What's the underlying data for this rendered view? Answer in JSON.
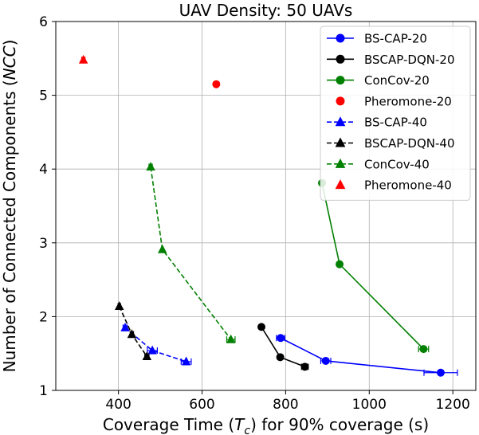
{
  "chart_data": {
    "type": "scatter",
    "title": "UAV Density: 50 UAVs",
    "xlabel": {
      "prefix": "Coverage Time (",
      "symbol": "T",
      "subscript": "c",
      "suffix": ") for 90% coverage (s)"
    },
    "ylabel": {
      "prefix": "Number of Connected Components (",
      "symbol": "NCC",
      "suffix": ")"
    },
    "xlim": [
      250,
      1255
    ],
    "ylim": [
      1,
      6
    ],
    "xticks": [
      400,
      600,
      800,
      1000,
      1200
    ],
    "yticks": [
      1,
      2,
      3,
      4,
      5,
      6
    ],
    "grid": true,
    "legend_position": "top-right",
    "series": [
      {
        "name": "BS-CAP-20",
        "color": "#0000ff",
        "marker": "circle",
        "dash": "solid",
        "x": [
          788,
          896,
          1171
        ],
        "y": [
          1.71,
          1.4,
          1.24
        ],
        "xerr": [
          10,
          12,
          40
        ]
      },
      {
        "name": "BSCAP-DQN-20",
        "color": "#000000",
        "marker": "circle",
        "dash": "solid",
        "x": [
          742,
          787,
          846
        ],
        "y": [
          1.86,
          1.45,
          1.32
        ],
        "xerr": [
          0,
          0,
          8
        ]
      },
      {
        "name": "ConCov-20",
        "color": "#008000",
        "marker": "circle",
        "dash": "solid",
        "x": [
          887,
          929,
          1130
        ],
        "y": [
          3.81,
          2.71,
          1.56
        ],
        "xerr": [
          0,
          0,
          12
        ]
      },
      {
        "name": "Pheromone-20",
        "color": "#ff0000",
        "marker": "circle",
        "dash": "none",
        "x": [
          634
        ],
        "y": [
          5.15
        ],
        "xerr": [
          0
        ]
      },
      {
        "name": "BS-CAP-40",
        "color": "#0000ff",
        "marker": "triangle",
        "dash": "dashed",
        "x": [
          416,
          481,
          562
        ],
        "y": [
          1.85,
          1.54,
          1.39
        ],
        "xerr": [
          5,
          12,
          12
        ]
      },
      {
        "name": "BSCAP-DQN-40",
        "color": "#000000",
        "marker": "triangle",
        "dash": "dashed",
        "x": [
          402,
          432,
          468
        ],
        "y": [
          2.14,
          1.76,
          1.46
        ],
        "xerr": [
          3,
          4,
          5
        ]
      },
      {
        "name": "ConCov-40",
        "color": "#008000",
        "marker": "triangle",
        "dash": "dashed",
        "x": [
          477,
          505,
          669
        ],
        "y": [
          4.03,
          2.91,
          1.69
        ],
        "xerr": [
          4,
          0,
          10
        ]
      },
      {
        "name": "Pheromone-40",
        "color": "#ff0000",
        "marker": "triangle",
        "dash": "none",
        "x": [
          316
        ],
        "y": [
          5.48
        ],
        "xerr": [
          4
        ]
      }
    ]
  }
}
